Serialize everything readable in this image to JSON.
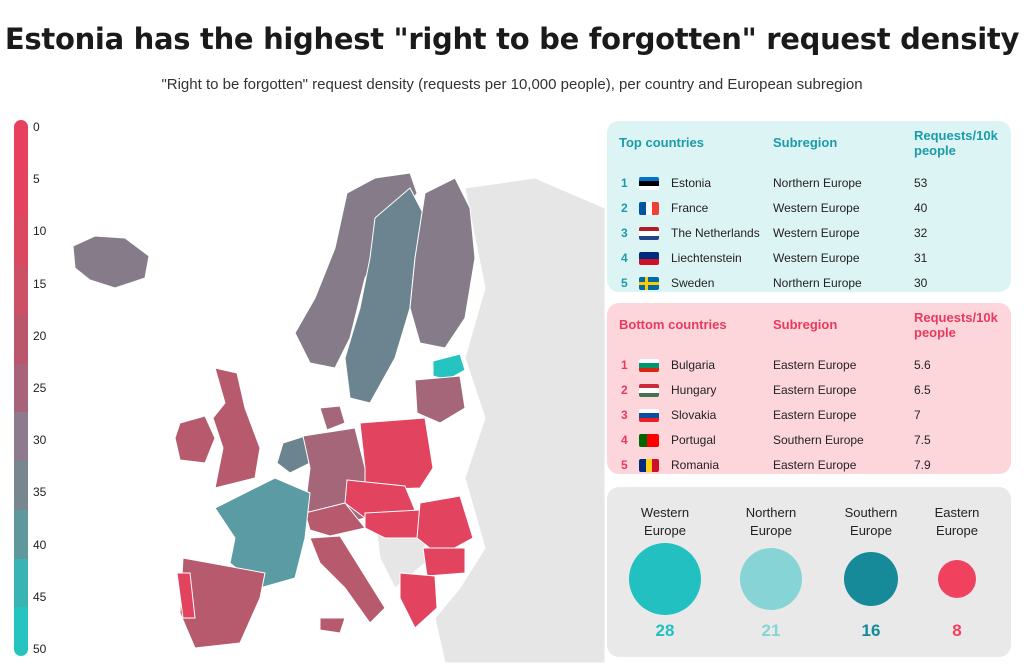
{
  "title": "Estonia has the highest \"right to be forgotten\" request density",
  "subtitle": "\"Right to be forgotten\" request density (requests per 10,000 people), per country and European subregion",
  "scale": {
    "labels": [
      "0",
      "5",
      "10",
      "15",
      "20",
      "25",
      "30",
      "35",
      "40",
      "45",
      "50"
    ],
    "colors": [
      "#e8415f",
      "#e3435f",
      "#d9495f",
      "#cc5066",
      "#bb576c",
      "#a8627a",
      "#8d7a8c",
      "#77868f",
      "#5e979c",
      "#3ab3b5",
      "#25c4c0"
    ]
  },
  "top": {
    "header": {
      "country": "Top countries",
      "subregion": "Subregion",
      "value": "Requests/10k people"
    },
    "rows": [
      {
        "rank": "1",
        "flag": "estonia",
        "country": "Estonia",
        "subregion": "Northern Europe",
        "value": "53"
      },
      {
        "rank": "2",
        "flag": "france",
        "country": "France",
        "subregion": "Western Europe",
        "value": "40"
      },
      {
        "rank": "3",
        "flag": "netherlands",
        "country": "The Netherlands",
        "subregion": "Western Europe",
        "value": "32"
      },
      {
        "rank": "4",
        "flag": "liechtenstein",
        "country": "Liechtenstein",
        "subregion": "Western Europe",
        "value": "31"
      },
      {
        "rank": "5",
        "flag": "sweden",
        "country": "Sweden",
        "subregion": "Northern Europe",
        "value": "30"
      }
    ]
  },
  "bottom": {
    "header": {
      "country": "Bottom countries",
      "subregion": "Subregion",
      "value": "Requests/10k people"
    },
    "rows": [
      {
        "rank": "1",
        "flag": "bulgaria",
        "country": "Bulgaria",
        "subregion": "Eastern Europe",
        "value": "5.6"
      },
      {
        "rank": "2",
        "flag": "hungary",
        "country": "Hungary",
        "subregion": "Eastern Europe",
        "value": "6.5"
      },
      {
        "rank": "3",
        "flag": "slovakia",
        "country": "Slovakia",
        "subregion": "Eastern Europe",
        "value": "7"
      },
      {
        "rank": "4",
        "flag": "portugal",
        "country": "Portugal",
        "subregion": "Southern Europe",
        "value": "7.5"
      },
      {
        "rank": "5",
        "flag": "romania",
        "country": "Romania",
        "subregion": "Eastern Europe",
        "value": "7.9"
      }
    ]
  },
  "regions": [
    {
      "line1": "Western",
      "line2": "Europe",
      "value": "28",
      "color": "#22c0c0"
    },
    {
      "line1": "Northern",
      "line2": "Europe",
      "value": "21",
      "color": "#86d4d5"
    },
    {
      "line1": "Southern",
      "line2": "Europe",
      "value": "16",
      "color": "#178a9a"
    },
    {
      "line1": "Eastern",
      "line2": "Europe",
      "value": "8",
      "color": "#f0415f"
    }
  ],
  "map_colors": {
    "base": "#e6e6e6",
    "red": "#e2435f",
    "rose": "#b85a6e",
    "mauve": "#a46678",
    "grey": "#857b89",
    "slate": "#6b8490",
    "teal": "#5b9ba3",
    "cyan": "#25c4c0"
  }
}
